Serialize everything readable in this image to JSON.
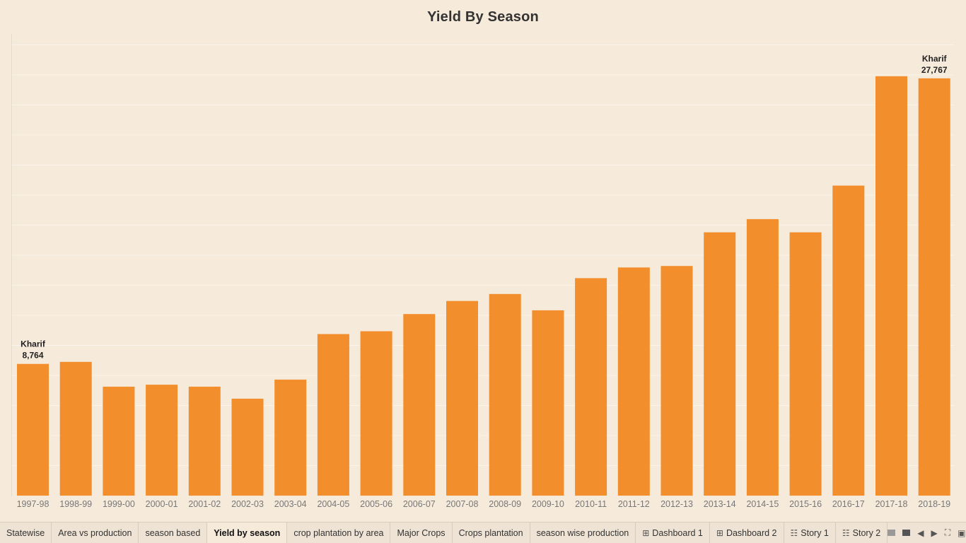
{
  "chart_data": {
    "type": "bar",
    "title": "Yield By Season",
    "xlabel": "",
    "ylabel": "",
    "ylim": [
      0,
      30000
    ],
    "grid": true,
    "categories": [
      "1997-98",
      "1998-99",
      "1999-00",
      "2000-01",
      "2001-02",
      "2002-03",
      "2003-04",
      "2004-05",
      "2005-06",
      "2006-07",
      "2007-08",
      "2008-09",
      "2009-10",
      "2010-11",
      "2011-12",
      "2012-13",
      "2013-14",
      "2014-15",
      "2015-16",
      "2016-17",
      "2017-18",
      "2018-19"
    ],
    "values": [
      8764,
      8900,
      7250,
      7380,
      7250,
      6450,
      7720,
      10750,
      10940,
      12080,
      12950,
      13420,
      12330,
      14470,
      15180,
      15280,
      17520,
      18400,
      17520,
      20630,
      27910,
      27767
    ],
    "annotations": [
      {
        "index": 0,
        "season": "Kharif",
        "value": "8,764"
      },
      {
        "index": 21,
        "season": "Kharif",
        "value": "27,767"
      }
    ],
    "color": "#f28e2b"
  },
  "tabs": [
    {
      "label": "Statewise",
      "icon": ""
    },
    {
      "label": "Area vs production",
      "icon": ""
    },
    {
      "label": "season based",
      "icon": ""
    },
    {
      "label": "Yield by season",
      "icon": "",
      "active": true
    },
    {
      "label": "crop plantation by area",
      "icon": ""
    },
    {
      "label": "Major Crops",
      "icon": ""
    },
    {
      "label": "Crops plantation",
      "icon": ""
    },
    {
      "label": "season wise production",
      "icon": ""
    },
    {
      "label": "Dashboard 1",
      "icon": "grid-icon"
    },
    {
      "label": "Dashboard 2",
      "icon": "grid-icon"
    },
    {
      "label": "Story 1",
      "icon": "book-icon"
    },
    {
      "label": "Story 2",
      "icon": "book-icon"
    }
  ],
  "controls": [
    "filmstrip-icon",
    "single-sheet-icon",
    "prev-icon",
    "next-icon",
    "fullscreen-icon",
    "presentation-icon"
  ]
}
